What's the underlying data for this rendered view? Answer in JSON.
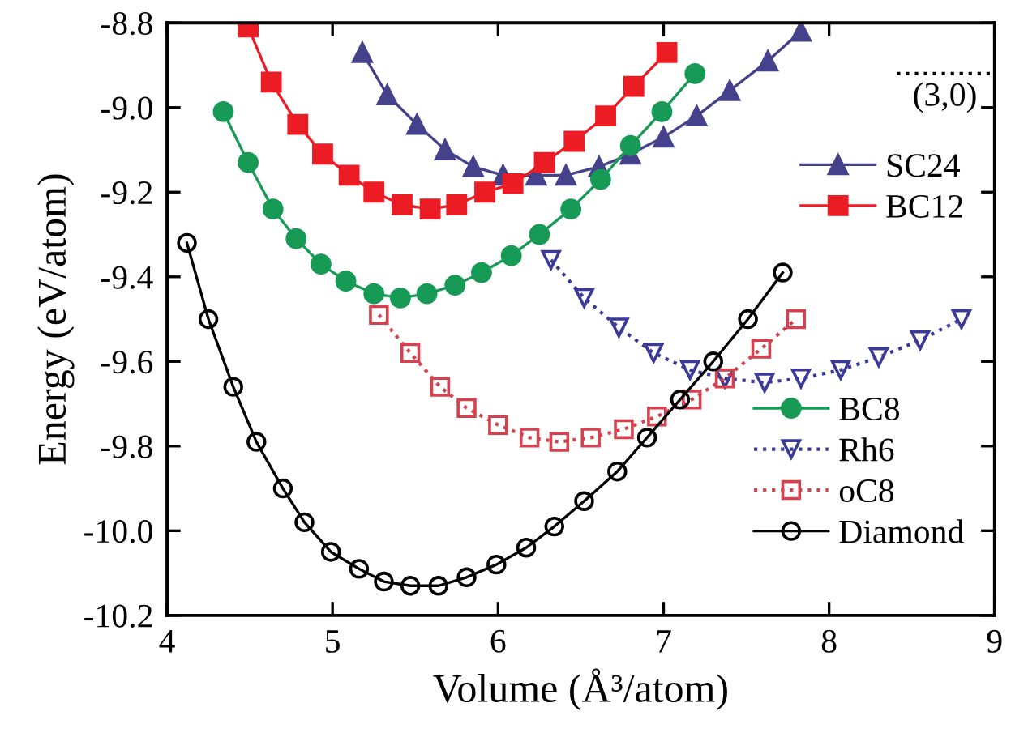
{
  "chart_data": {
    "type": "line",
    "xlabel": "Volume (Å³/atom)",
    "ylabel": "Energy (eV/atom)",
    "xlim": [
      4,
      9
    ],
    "ylim": [
      -10.2,
      -8.8
    ],
    "xticks": [
      4,
      5,
      6,
      7,
      8,
      9
    ],
    "yticks": [
      -10.2,
      {
        "value": -10,
        "label": "-10.0"
      },
      -9.8,
      -9.6,
      -9.4,
      -9.2,
      {
        "value": -9,
        "label": "-9.0"
      },
      -8.8
    ],
    "grid": false,
    "legend": "right",
    "annotations": [
      "(3,0)"
    ],
    "series": [
      {
        "name": "SC24",
        "color": "#45418a",
        "marker": "triangle",
        "line_style": "solid",
        "x": [
          5.18,
          5.33,
          5.51,
          5.68,
          5.85,
          6.03,
          6.23,
          6.41,
          6.61,
          6.8,
          7.0,
          7.2,
          7.4,
          7.63,
          7.83
        ],
        "values": [
          -8.87,
          -8.97,
          -9.04,
          -9.1,
          -9.14,
          -9.16,
          -9.16,
          -9.16,
          -9.14,
          -9.11,
          -9.07,
          -9.02,
          -8.96,
          -8.89,
          -8.82
        ]
      },
      {
        "name": "BC12",
        "color": "#ec1c24",
        "marker": "square",
        "line_style": "solid",
        "x": [
          4.49,
          4.63,
          4.79,
          4.94,
          5.1,
          5.25,
          5.42,
          5.59,
          5.75,
          5.92,
          6.09,
          6.28,
          6.46,
          6.65,
          6.82,
          7.02
        ],
        "values": [
          -8.81,
          -8.94,
          -9.04,
          -9.11,
          -9.16,
          -9.2,
          -9.23,
          -9.24,
          -9.23,
          -9.2,
          -9.18,
          -9.13,
          -9.08,
          -9.02,
          -8.95,
          -8.87
        ]
      },
      {
        "name": "BC8",
        "color": "#179a56",
        "marker": "circle",
        "line_style": "solid",
        "x": [
          4.34,
          4.49,
          4.64,
          4.78,
          4.93,
          5.08,
          5.25,
          5.41,
          5.57,
          5.74,
          5.9,
          6.08,
          6.25,
          6.44,
          6.62,
          6.8,
          6.99,
          7.19
        ],
        "values": [
          -9.01,
          -9.13,
          -9.24,
          -9.31,
          -9.37,
          -9.41,
          -9.44,
          -9.45,
          -9.44,
          -9.42,
          -9.39,
          -9.35,
          -9.3,
          -9.24,
          -9.17,
          -9.09,
          -9.01,
          -8.92
        ]
      },
      {
        "name": "Rh6",
        "color": "#3b3a98",
        "marker": "triangle_down_open",
        "line_style": "dotted",
        "x": [
          6.32,
          6.52,
          6.73,
          6.94,
          7.16,
          7.37,
          7.61,
          7.83,
          8.07,
          8.3,
          8.55,
          8.8
        ],
        "values": [
          -9.36,
          -9.45,
          -9.52,
          -9.58,
          -9.62,
          -9.64,
          -9.65,
          -9.64,
          -9.62,
          -9.59,
          -9.55,
          -9.5
        ]
      },
      {
        "name": "oC8",
        "color": "#d2434f",
        "marker": "square_open",
        "line_style": "dotted",
        "x": [
          5.28,
          5.47,
          5.65,
          5.81,
          6.0,
          6.19,
          6.37,
          6.56,
          6.76,
          6.96,
          7.17,
          7.37,
          7.59,
          7.8
        ],
        "values": [
          -9.49,
          -9.58,
          -9.66,
          -9.71,
          -9.75,
          -9.78,
          -9.79,
          -9.78,
          -9.76,
          -9.73,
          -9.69,
          -9.64,
          -9.57,
          -9.5
        ]
      },
      {
        "name": "Diamond",
        "color": "#000000",
        "marker": "circle_open",
        "line_style": "solid",
        "x": [
          4.12,
          4.25,
          4.4,
          4.54,
          4.7,
          4.83,
          4.99,
          5.16,
          5.31,
          5.47,
          5.64,
          5.81,
          5.99,
          6.17,
          6.34,
          6.52,
          6.72,
          6.9,
          7.1,
          7.3,
          7.51,
          7.72
        ],
        "values": [
          -9.32,
          -9.5,
          -9.66,
          -9.79,
          -9.9,
          -9.98,
          -10.05,
          -10.09,
          -10.12,
          -10.13,
          -10.13,
          -10.11,
          -10.08,
          -10.04,
          -9.99,
          -9.93,
          -9.86,
          -9.78,
          -9.69,
          -9.6,
          -9.5,
          -9.39
        ]
      },
      {
        "color": "#000000",
        "marker": "none",
        "line_style": "dotted",
        "x": [
          8.41,
          9.0
        ],
        "values": [
          -8.92,
          -8.92
        ]
      }
    ]
  }
}
